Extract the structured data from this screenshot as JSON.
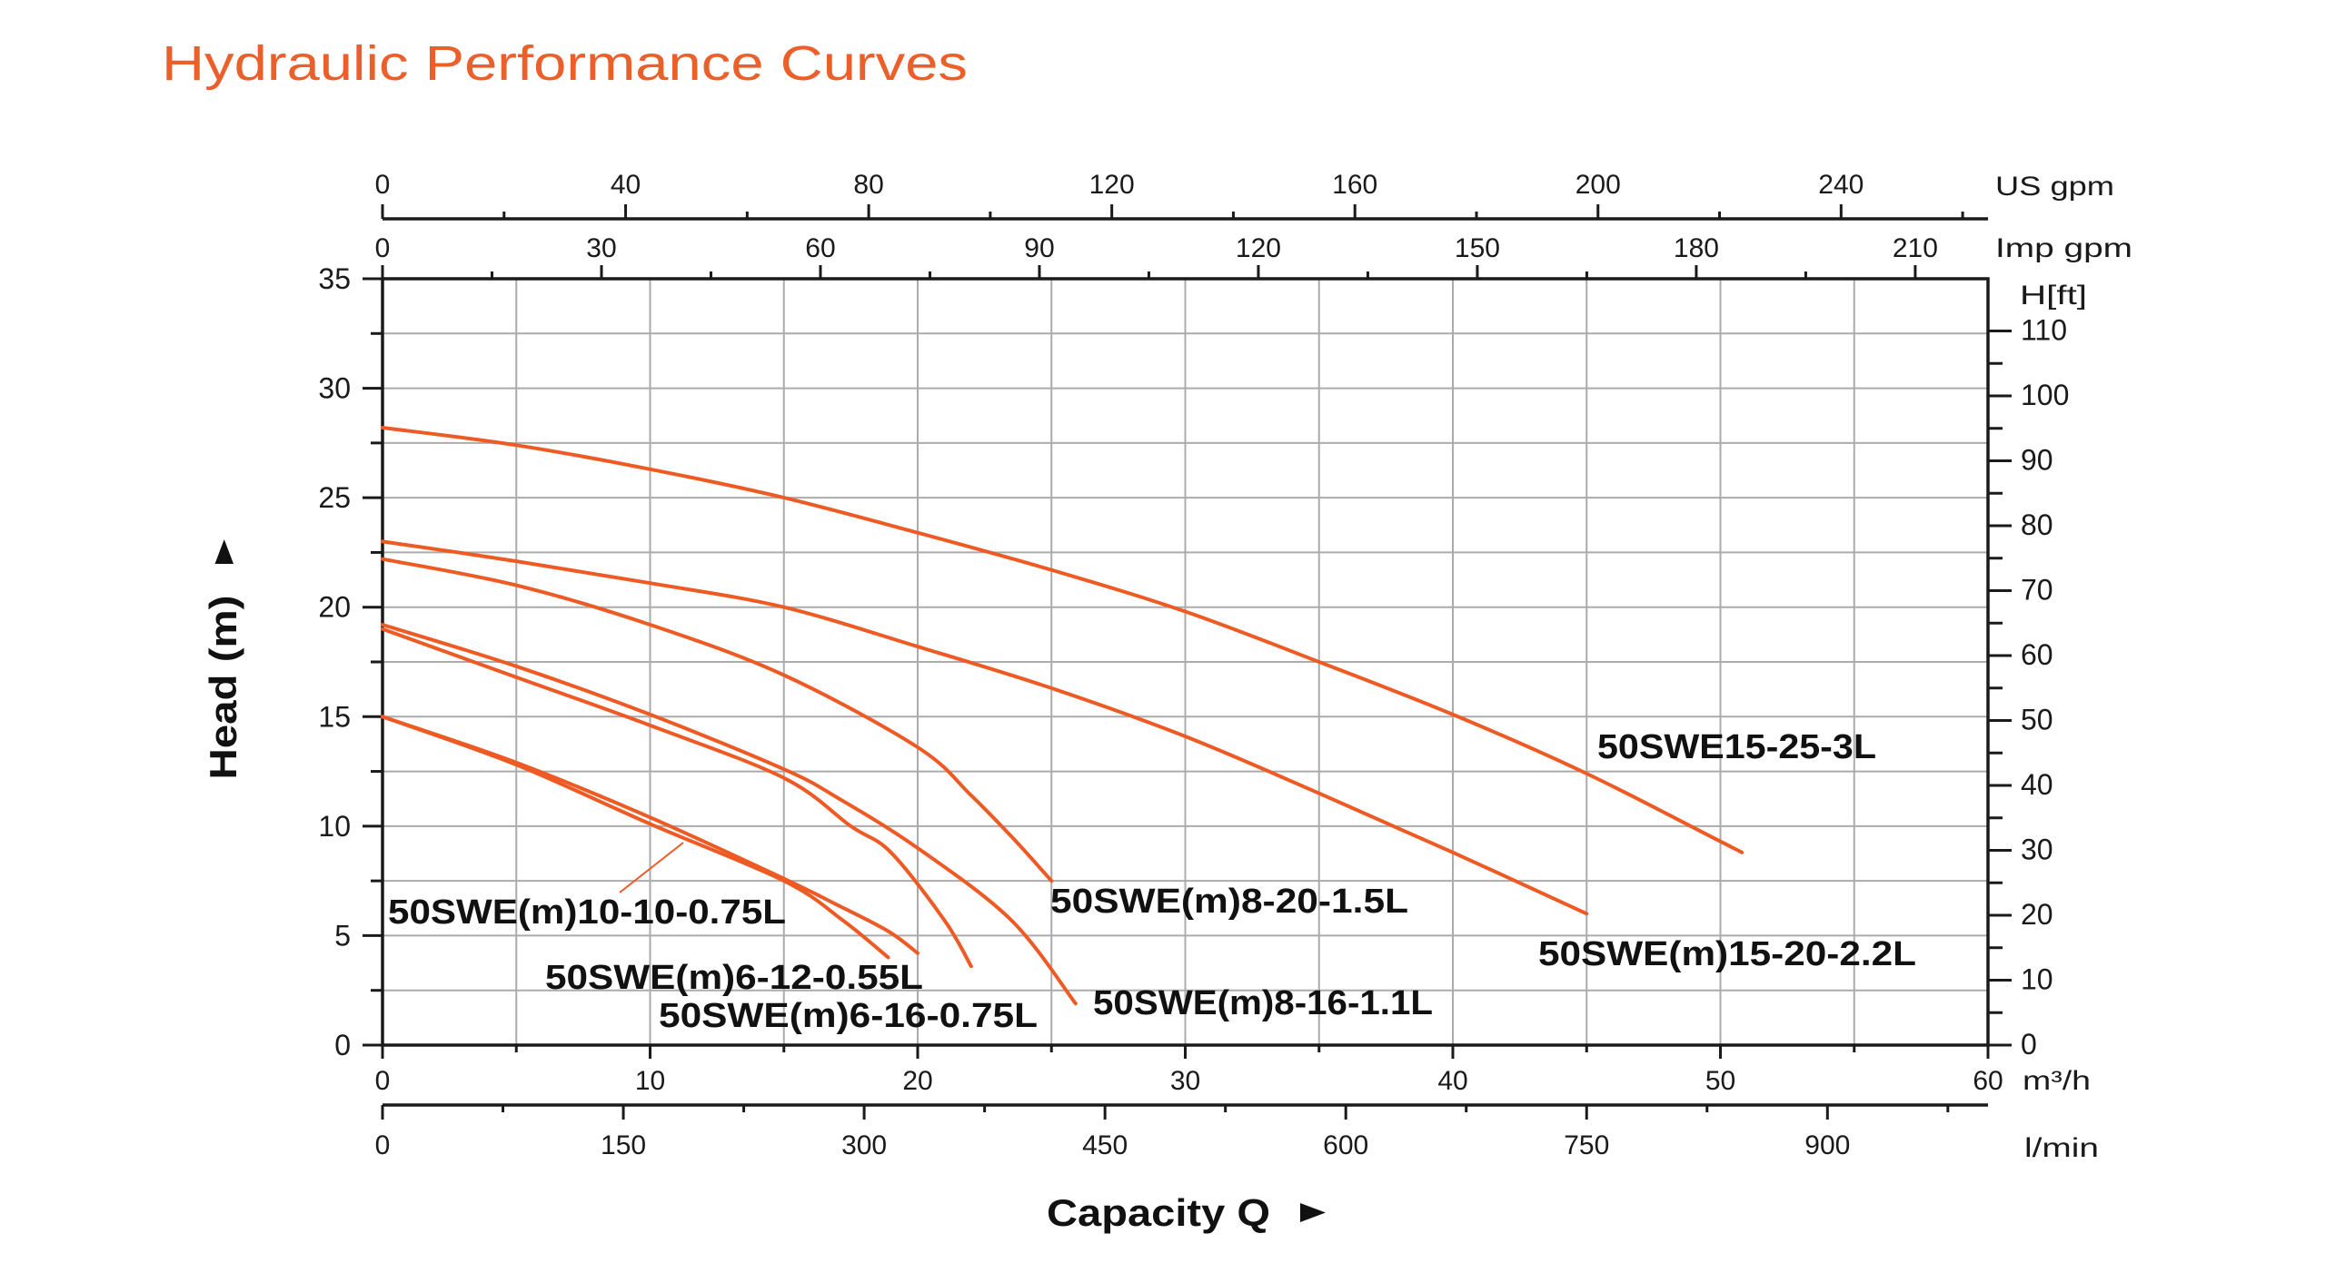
{
  "title": "Hydraulic Performance Curves",
  "colors": {
    "title": "#EB5F2A",
    "curve": "#EE5A24",
    "grid": "#ABABAB",
    "axis": "#1A1A1A",
    "label": "#111111"
  },
  "chart_data": {
    "type": "line",
    "title": "Hydraulic Performance Curves",
    "xlabel": "Capacity Q",
    "ylabel": "Head (m)",
    "xlim": [
      0,
      60
    ],
    "ylim": [
      0,
      35
    ],
    "grid": {
      "on": true,
      "x_step": 5,
      "y_step": 2.5
    },
    "x_axis": {
      "unit": "m³/h",
      "ticks": [
        0,
        10,
        20,
        30,
        40,
        50,
        60
      ],
      "minor_step": 5
    },
    "y_axis": {
      "ticks": [
        0,
        5,
        10,
        15,
        20,
        25,
        30,
        35
      ],
      "minor_step": 2.5
    },
    "secondary_axes": {
      "us_gpm": {
        "label": "US gpm",
        "position": "top",
        "ticks": [
          0,
          40,
          80,
          120,
          160,
          200,
          240
        ],
        "minor_step": 20
      },
      "imp_gpm": {
        "label": "Imp gpm",
        "position": "top",
        "ticks": [
          0,
          30,
          60,
          90,
          120,
          150,
          180,
          210
        ],
        "minor_step": 15
      },
      "l_min": {
        "label": "l/min",
        "position": "bottom",
        "ticks": [
          0,
          150,
          300,
          450,
          600,
          750,
          900
        ],
        "minor_step": 75
      },
      "h_ft": {
        "label": "H[ft]",
        "position": "right",
        "ticks": [
          0,
          10,
          20,
          30,
          40,
          50,
          60,
          70,
          80,
          90,
          100,
          110
        ],
        "minor_step": 5
      }
    },
    "series": [
      {
        "name": "50SWE15-25-3L",
        "points": [
          [
            0,
            28.2
          ],
          [
            5,
            27.4
          ],
          [
            10,
            26.3
          ],
          [
            15,
            25.0
          ],
          [
            20,
            23.4
          ],
          [
            25,
            21.7
          ],
          [
            30,
            19.8
          ],
          [
            35,
            17.5
          ],
          [
            40,
            15.1
          ],
          [
            45,
            12.4
          ],
          [
            50,
            9.3
          ],
          [
            50.8,
            8.8
          ]
        ]
      },
      {
        "name": "50SWE(m)15-20-2.2L",
        "points": [
          [
            0,
            23.0
          ],
          [
            5,
            22.1
          ],
          [
            10,
            21.1
          ],
          [
            15,
            20.0
          ],
          [
            20,
            18.2
          ],
          [
            25,
            16.3
          ],
          [
            30,
            14.1
          ],
          [
            35,
            11.5
          ],
          [
            40,
            8.8
          ],
          [
            45,
            6.0
          ]
        ]
      },
      {
        "name": "50SWE(m)8-20-1.5L",
        "points": [
          [
            0,
            22.2
          ],
          [
            5,
            21.0
          ],
          [
            10,
            19.2
          ],
          [
            15,
            16.9
          ],
          [
            20,
            13.6
          ],
          [
            22,
            11.4
          ],
          [
            23.6,
            9.4
          ],
          [
            25,
            7.5
          ]
        ]
      },
      {
        "name": "50SWE(m)8-16-1.1L",
        "points": [
          [
            0,
            19.2
          ],
          [
            5,
            17.3
          ],
          [
            10,
            15.1
          ],
          [
            15,
            12.6
          ],
          [
            17,
            11.3
          ],
          [
            20,
            9.0
          ],
          [
            23.5,
            5.7
          ],
          [
            25.9,
            1.9
          ]
        ]
      },
      {
        "name": "50SWE(m)6-16-0.75L",
        "points": [
          [
            0,
            19.0
          ],
          [
            5,
            16.8
          ],
          [
            10,
            14.6
          ],
          [
            15,
            12.2
          ],
          [
            17.5,
            10.0
          ],
          [
            19,
            8.8
          ],
          [
            21,
            5.7
          ],
          [
            22,
            3.6
          ]
        ]
      },
      {
        "name": "50SWE(m)6-12-0.55L",
        "points": [
          [
            0,
            15.0
          ],
          [
            5,
            12.9
          ],
          [
            10,
            10.4
          ],
          [
            15,
            7.6
          ],
          [
            17,
            6.4
          ],
          [
            18.9,
            5.2
          ],
          [
            20,
            4.2
          ]
        ]
      },
      {
        "name": "50SWE(m)10-10-0.75L",
        "points": [
          [
            0,
            15.0
          ],
          [
            5,
            12.8
          ],
          [
            10,
            10.1
          ],
          [
            15,
            7.5
          ],
          [
            17.2,
            5.7
          ],
          [
            18.9,
            4.0
          ]
        ]
      }
    ]
  }
}
